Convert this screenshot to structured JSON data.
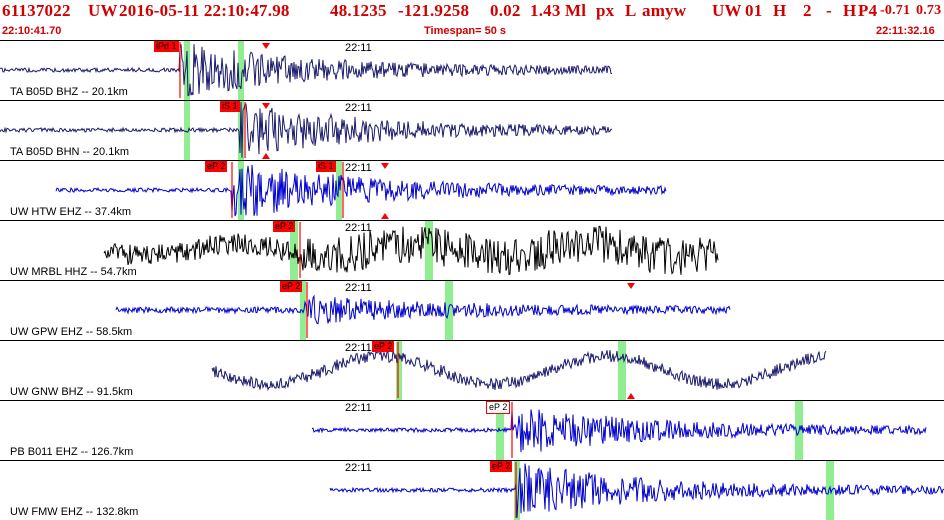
{
  "header": {
    "event_id": "61137022",
    "network": "UW",
    "datetime": "2016-05-11 22:10:47.98",
    "lat": "48.1235",
    "lon": "-121.9258",
    "depth": "0.02",
    "magnitude": "1.43 Ml",
    "type": "px",
    "flag": "L",
    "author": "amyw",
    "net2": "UW",
    "code1": "01",
    "code2": "H",
    "code3": "2",
    "code4": "-",
    "code5": "H",
    "code6": "P4",
    "v1": "-0.71",
    "v2": "0.73"
  },
  "timebar": {
    "start": "22:10:41.70",
    "timespan": "Timespan=  50 s",
    "end": "22:11:32.16"
  },
  "colors": {
    "header_red": "#d00000",
    "trace_navy": "#1a1a6e",
    "trace_blue": "#0000d0",
    "trace_black": "#000000",
    "window_green": "#90ee90",
    "pick_red": "#ff0000"
  },
  "traces": [
    {
      "station": "TA B05D BHZ -- 20.1km",
      "tick": "22:11",
      "color": "navy",
      "picks": [
        {
          "label": "iPd 1",
          "style": "filled"
        }
      ]
    },
    {
      "station": "TA B05D BHN -- 20.1km",
      "tick": "22:11",
      "color": "navy",
      "picks": [
        {
          "label": "iS 1",
          "style": "filled"
        }
      ]
    },
    {
      "station": "UW HTW EHZ -- 37.4km",
      "tick": "22:11",
      "color": "blue",
      "picks": [
        {
          "label": "eP 2",
          "style": "filled"
        },
        {
          "label": "iS 1",
          "style": "filled"
        }
      ]
    },
    {
      "station": "UW MRBL HHZ -- 54.7km",
      "tick": "22:11",
      "color": "black",
      "picks": [
        {
          "label": "eP 2",
          "style": "filled"
        }
      ]
    },
    {
      "station": "UW GPW EHZ -- 58.5km",
      "tick": "22:11",
      "color": "blue",
      "picks": [
        {
          "label": "eP 2",
          "style": "filled"
        }
      ]
    },
    {
      "station": "UW GNW BHZ -- 91.5km",
      "tick": "22:11",
      "color": "navy",
      "picks": [
        {
          "label": "eP 2",
          "style": "filled"
        }
      ]
    },
    {
      "station": "PB B011 EHZ -- 126.7km",
      "tick": "22:11",
      "color": "blue",
      "picks": [
        {
          "label": "eP 2",
          "style": "outline"
        }
      ]
    },
    {
      "station": "UW FMW EHZ -- 132.8km",
      "tick": "22:11",
      "color": "blue",
      "picks": [
        {
          "label": "eP 2",
          "style": "filled"
        }
      ]
    }
  ]
}
